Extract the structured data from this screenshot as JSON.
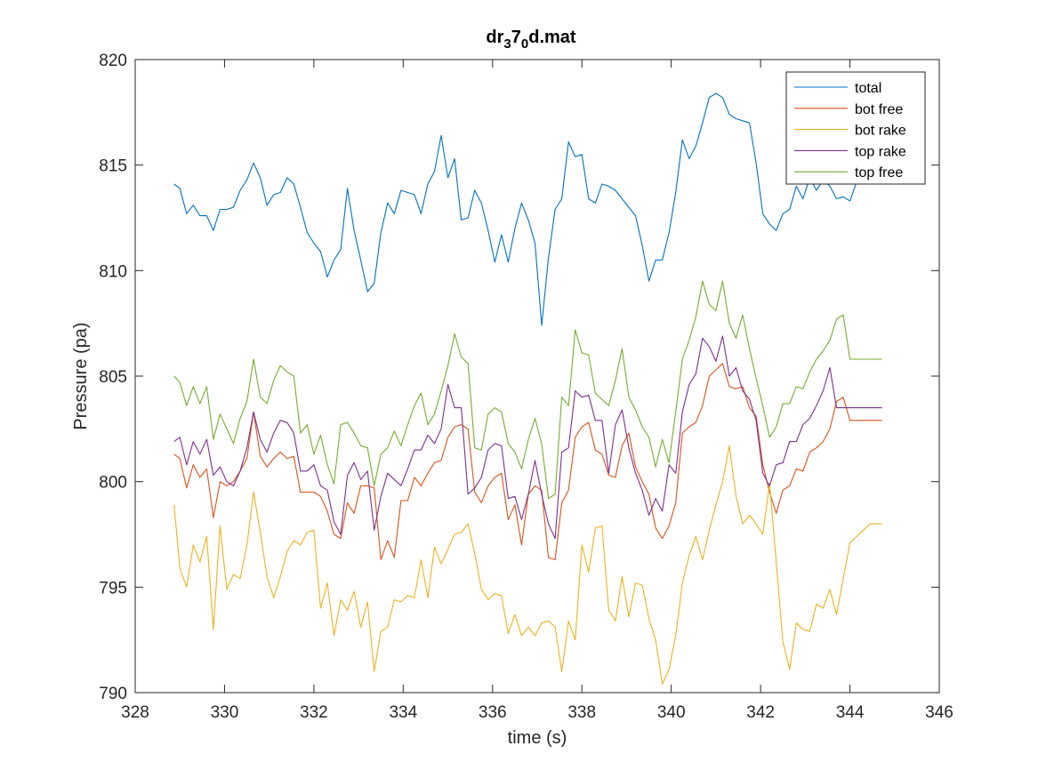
{
  "chart_data": {
    "type": "line",
    "title": {
      "base1": "dr",
      "sub1": "3",
      "base2": "7",
      "sub2": "0",
      "base3": "d.mat"
    },
    "xlabel": "time (s)",
    "ylabel": "Pressure (pa)",
    "xlim": [
      328,
      346
    ],
    "ylim": [
      790,
      820
    ],
    "xticks": [
      328,
      330,
      332,
      334,
      336,
      338,
      340,
      342,
      344,
      346
    ],
    "yticks": [
      790,
      795,
      800,
      805,
      810,
      815,
      820
    ],
    "grid": false,
    "legend_position": "top-right",
    "x": [
      328.87,
      329.0,
      329.15,
      329.3,
      329.45,
      329.6,
      329.75,
      329.9,
      330.05,
      330.2,
      330.35,
      330.5,
      330.65,
      330.8,
      330.95,
      331.1,
      331.25,
      331.4,
      331.55,
      331.7,
      331.85,
      332.0,
      332.15,
      332.3,
      332.45,
      332.6,
      332.75,
      332.9,
      333.05,
      333.2,
      333.35,
      333.5,
      333.65,
      333.8,
      333.95,
      334.1,
      334.25,
      334.4,
      334.55,
      334.7,
      334.85,
      335.0,
      335.15,
      335.3,
      335.45,
      335.6,
      335.75,
      335.9,
      336.05,
      336.2,
      336.35,
      336.5,
      336.65,
      336.8,
      336.95,
      337.1,
      337.25,
      337.4,
      337.55,
      337.7,
      337.85,
      338.0,
      338.15,
      338.3,
      338.45,
      338.6,
      338.75,
      338.9,
      339.05,
      339.2,
      339.35,
      339.5,
      339.65,
      339.8,
      339.95,
      340.1,
      340.25,
      340.4,
      340.55,
      340.7,
      340.85,
      341.0,
      341.15,
      341.3,
      341.45,
      341.6,
      341.75,
      341.9,
      342.05,
      342.2,
      342.35,
      342.5,
      342.65,
      342.8,
      342.95,
      343.1,
      343.25,
      343.4,
      343.55,
      343.7,
      343.85,
      344.0,
      344.15,
      344.3,
      344.45,
      344.6,
      344.72
    ],
    "series": [
      {
        "name": "total",
        "color": "#0072BD",
        "values": [
          814.1,
          813.9,
          812.7,
          813.1,
          812.6,
          812.6,
          811.9,
          812.9,
          812.9,
          813.0,
          813.8,
          814.3,
          815.1,
          814.4,
          813.1,
          813.6,
          813.7,
          814.4,
          814.1,
          813.0,
          811.8,
          811.3,
          810.9,
          809.7,
          810.5,
          811.0,
          813.9,
          811.9,
          810.5,
          809.0,
          809.4,
          811.8,
          813.2,
          812.7,
          813.8,
          813.7,
          813.6,
          812.7,
          814.1,
          814.7,
          816.4,
          814.4,
          815.3,
          812.4,
          812.5,
          813.8,
          813.2,
          811.9,
          810.4,
          811.7,
          810.4,
          812.0,
          813.2,
          812.4,
          811.3,
          807.4,
          810.6,
          812.9,
          813.4,
          816.1,
          815.4,
          815.5,
          813.4,
          813.2,
          814.1,
          814.0,
          813.8,
          813.4,
          813.0,
          812.6,
          811.2,
          809.5,
          810.5,
          810.5,
          811.8,
          813.7,
          816.2,
          815.3,
          815.9,
          817.0,
          818.2,
          818.4,
          818.2,
          817.4,
          817.2,
          817.1,
          817.0,
          815.1,
          812.7,
          812.2,
          811.9,
          812.7,
          812.9,
          814.0,
          813.4,
          814.4,
          813.8,
          814.3,
          814.0,
          813.4,
          813.5,
          813.3,
          814.2,
          814.6,
          815.6,
          816.3,
          816.3
        ]
      },
      {
        "name": "bot free",
        "color": "#D95319",
        "values": [
          801.3,
          801.1,
          799.7,
          800.8,
          800.2,
          800.6,
          798.3,
          800.0,
          799.8,
          800.0,
          800.5,
          801.1,
          803.3,
          801.2,
          800.7,
          801.1,
          801.4,
          801.1,
          801.2,
          799.5,
          799.5,
          799.5,
          799.3,
          798.6,
          797.5,
          797.3,
          799.0,
          798.5,
          799.8,
          799.8,
          799.7,
          796.3,
          797.2,
          796.4,
          799.1,
          799.1,
          800.2,
          799.8,
          800.4,
          800.9,
          801.0,
          802.1,
          802.6,
          802.7,
          802.5,
          799.5,
          799.0,
          799.8,
          800.2,
          800.4,
          798.2,
          798.9,
          797.0,
          799.4,
          799.8,
          799.6,
          796.4,
          796.3,
          799.0,
          799.6,
          802.1,
          802.6,
          802.8,
          801.5,
          801.3,
          800.3,
          800.2,
          801.7,
          802.3,
          800.7,
          800.0,
          799.4,
          797.8,
          797.3,
          797.9,
          799.0,
          802.3,
          802.6,
          802.8,
          803.6,
          805.0,
          805.3,
          805.6,
          804.5,
          804.4,
          804.5,
          803.5,
          803.1,
          800.8,
          799.5,
          798.5,
          799.6,
          799.8,
          800.6,
          800.5,
          801.4,
          801.6,
          801.9,
          802.5,
          803.8,
          804.0,
          802.9,
          802.9,
          802.9,
          802.9,
          802.9,
          802.9
        ]
      },
      {
        "name": "bot rake",
        "color": "#EDB120",
        "values": [
          798.9,
          795.9,
          795.0,
          797.0,
          796.2,
          797.4,
          793.0,
          797.9,
          794.9,
          795.6,
          795.4,
          797.0,
          799.5,
          797.6,
          795.5,
          794.5,
          795.5,
          796.7,
          797.2,
          797.0,
          797.6,
          797.7,
          794.0,
          795.2,
          792.7,
          794.4,
          793.9,
          794.8,
          793.1,
          794.3,
          791.0,
          792.9,
          793.1,
          794.4,
          794.3,
          794.6,
          794.5,
          796.3,
          794.5,
          796.9,
          796.1,
          796.8,
          797.5,
          797.6,
          798.0,
          796.6,
          794.9,
          794.4,
          794.7,
          794.6,
          792.8,
          793.7,
          792.7,
          793.1,
          792.7,
          793.3,
          793.4,
          793.1,
          791.0,
          793.4,
          792.5,
          797.0,
          795.7,
          797.8,
          797.9,
          793.9,
          793.4,
          795.5,
          793.6,
          795.2,
          795.1,
          793.5,
          792.5,
          790.4,
          791.1,
          792.7,
          795.2,
          796.5,
          797.4,
          796.3,
          797.7,
          798.9,
          800.0,
          801.7,
          799.3,
          798.0,
          798.4,
          798.0,
          797.5,
          799.9,
          796.2,
          792.4,
          791.1,
          793.3,
          793.0,
          792.9,
          794.2,
          794.0,
          794.9,
          793.7,
          795.4,
          797.1,
          797.4,
          797.7,
          798.0,
          798.0,
          798.0
        ]
      },
      {
        "name": "top rake",
        "color": "#7E2F8E",
        "values": [
          801.9,
          802.1,
          800.8,
          801.9,
          801.3,
          802.0,
          800.3,
          800.7,
          800.0,
          799.8,
          800.5,
          801.6,
          803.3,
          802.0,
          801.4,
          802.3,
          802.9,
          802.8,
          802.3,
          800.5,
          800.5,
          800.8,
          799.8,
          799.6,
          798.1,
          797.5,
          800.3,
          800.9,
          800.1,
          800.5,
          797.7,
          799.3,
          800.4,
          800.1,
          799.8,
          800.6,
          801.5,
          801.5,
          802.2,
          801.8,
          802.5,
          804.6,
          803.5,
          803.5,
          799.4,
          799.7,
          800.2,
          801.5,
          801.8,
          801.7,
          799.2,
          799.3,
          798.2,
          799.4,
          801.0,
          799.4,
          798.0,
          797.3,
          801.4,
          801.6,
          804.3,
          804.0,
          804.1,
          802.9,
          802.9,
          800.4,
          802.7,
          803.4,
          801.6,
          800.4,
          799.6,
          798.4,
          799.2,
          798.6,
          800.8,
          800.4,
          803.3,
          804.6,
          805.1,
          806.8,
          806.4,
          805.7,
          806.9,
          805.0,
          805.4,
          804.3,
          803.9,
          802.9,
          800.4,
          799.8,
          800.8,
          800.9,
          801.9,
          801.9,
          802.7,
          803.0,
          803.6,
          804.3,
          805.4,
          803.5,
          803.5,
          803.5,
          803.5,
          803.5,
          803.5,
          803.5,
          803.5
        ]
      },
      {
        "name": "top free",
        "color": "#77AC30",
        "values": [
          805.0,
          804.7,
          803.6,
          804.5,
          803.7,
          804.5,
          802.0,
          803.2,
          802.5,
          801.8,
          803.0,
          803.8,
          805.8,
          804.0,
          803.7,
          804.8,
          805.5,
          805.2,
          805.0,
          802.3,
          802.7,
          801.3,
          802.2,
          800.8,
          799.9,
          802.7,
          802.8,
          802.3,
          801.7,
          801.6,
          799.8,
          801.3,
          801.6,
          802.4,
          801.7,
          802.7,
          803.6,
          804.2,
          802.7,
          803.2,
          804.3,
          805.5,
          807.0,
          805.9,
          805.6,
          801.6,
          801.5,
          803.2,
          803.5,
          803.3,
          801.8,
          801.4,
          800.6,
          802.0,
          803.0,
          801.8,
          799.2,
          799.4,
          804.0,
          803.6,
          807.2,
          806.1,
          806.0,
          804.2,
          803.9,
          803.6,
          804.8,
          806.3,
          804.0,
          803.4,
          802.6,
          802.1,
          800.7,
          802.0,
          800.9,
          803.3,
          805.8,
          806.7,
          807.8,
          809.5,
          808.4,
          808.1,
          809.5,
          807.5,
          806.8,
          807.9,
          806.3,
          804.9,
          803.6,
          802.1,
          802.6,
          803.7,
          803.7,
          804.5,
          804.4,
          805.2,
          805.8,
          806.2,
          806.7,
          807.7,
          807.9,
          805.8,
          805.8,
          805.8,
          805.8,
          805.8,
          805.8
        ]
      }
    ]
  }
}
